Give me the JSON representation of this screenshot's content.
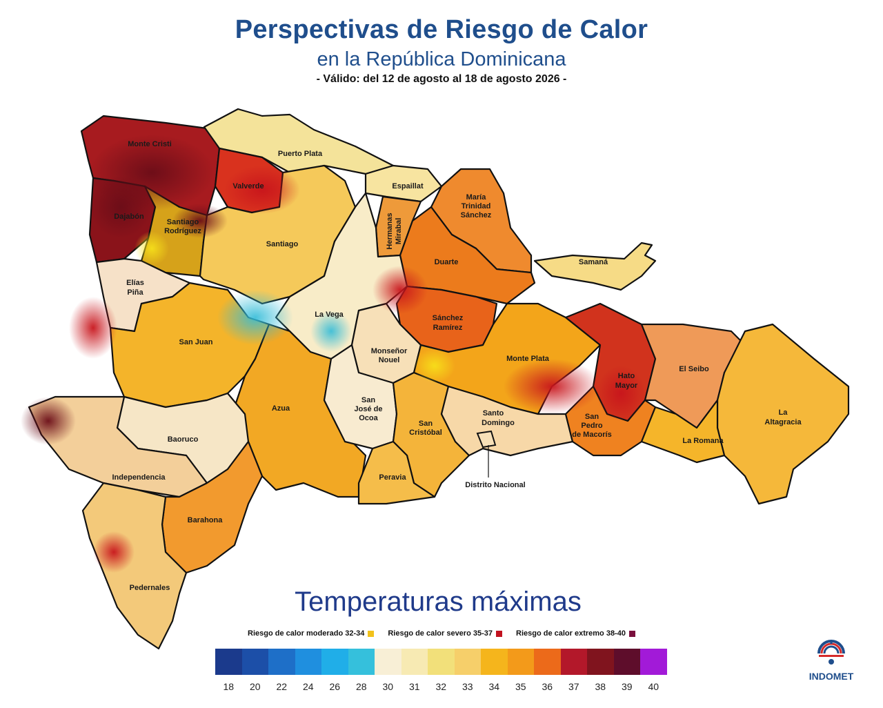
{
  "header": {
    "title_line1": "Perspectivas de Riesgo de Calor",
    "title_line2": "en la República Dominicana",
    "validity": "-  Válido: del 12 de agosto al 18 de agosto 2026  -"
  },
  "section_title": "Temperaturas máximas",
  "risk_legend": [
    {
      "label": "Riesgo de calor moderado 32-34",
      "color": "#f2c21b"
    },
    {
      "label": "Riesgo de calor severo 35-37",
      "color": "#c1121f"
    },
    {
      "label": "Riesgo de calor extremo  38-40",
      "color": "#7a0f3d"
    }
  ],
  "scale": {
    "colors": [
      "#1b3a8c",
      "#1c4fa8",
      "#1e6fc8",
      "#1f8fdf",
      "#20aee8",
      "#35c0dc",
      "#f8efd6",
      "#f7eab3",
      "#f2e07a",
      "#f6cf6a",
      "#f5b51c",
      "#f39a1a",
      "#ec6a1a",
      "#b3182a",
      "#80141e",
      "#5e0d2b",
      "#a21ad8"
    ],
    "ticks": [
      "18",
      "20",
      "22",
      "24",
      "26",
      "28",
      "30",
      "31",
      "32",
      "33",
      "34",
      "35",
      "36",
      "37",
      "38",
      "39",
      "40"
    ]
  },
  "provinces": [
    {
      "name": "Monte Cristi",
      "color": "#a71b1f"
    },
    {
      "name": "Puerto Plata",
      "color": "#f4e39a"
    },
    {
      "name": "Valverde",
      "color": "#d9321e"
    },
    {
      "name": "Dajabón",
      "color": "#8a131a"
    },
    {
      "name": "Santiago Rodríguez",
      "color": "#d6a21a"
    },
    {
      "name": "Santiago",
      "color": "#f5c95a"
    },
    {
      "name": "Espaillat",
      "color": "#f7e4a0"
    },
    {
      "name": "Hermanas Mirabal",
      "color": "#ee9a3a"
    },
    {
      "name": "María Trinidad Sánchez",
      "color": "#ef8a2e"
    },
    {
      "name": "Duarte",
      "color": "#ec7b1c"
    },
    {
      "name": "Samaná",
      "color": "#f6db86"
    },
    {
      "name": "Elías Piña",
      "color": "#f6e1c8"
    },
    {
      "name": "La Vega",
      "color": "#f8ecc8"
    },
    {
      "name": "San Juan",
      "color": "#f4b42a"
    },
    {
      "name": "Sánchez Ramírez",
      "color": "#e8631a"
    },
    {
      "name": "Monseñor Nouel",
      "color": "#f7e0b8"
    },
    {
      "name": "Monte Plata",
      "color": "#f3a51a"
    },
    {
      "name": "Hato Mayor",
      "color": "#d1331d"
    },
    {
      "name": "El Seibo",
      "color": "#ef9a58"
    },
    {
      "name": "La Altagracia",
      "color": "#f5b83a"
    },
    {
      "name": "Azua",
      "color": "#f2a824"
    },
    {
      "name": "San José de Ocoa",
      "color": "#f8ebd0"
    },
    {
      "name": "San Cristóbal",
      "color": "#f4b43a"
    },
    {
      "name": "Santo Domingo",
      "color": "#f7d8a8"
    },
    {
      "name": "San Pedro de Macorís",
      "color": "#ef8220"
    },
    {
      "name": "La Romana",
      "color": "#f5b52a"
    },
    {
      "name": "Baoruco",
      "color": "#f6e6c6"
    },
    {
      "name": "Independencia",
      "color": "#f3cf9a"
    },
    {
      "name": "Peravia",
      "color": "#f5bd4a"
    },
    {
      "name": "Barahona",
      "color": "#f29a2e"
    },
    {
      "name": "Pedernales",
      "color": "#f3c97a"
    }
  ],
  "label_texts": {
    "monte_cristi": "Monte Cristi",
    "puerto_plata": "Puerto Plata",
    "valverde": "Valverde",
    "espaillat": "Espaillat",
    "mts_1": "María",
    "mts_2": "Trinidad",
    "mts_3": "Sánchez",
    "dajabon": "Dajabón",
    "sr_1": "Santiago",
    "sr_2": "Rodríguez",
    "santiago": "Santiago",
    "hm_1": "Hermanas",
    "hm_2": "Mirabal",
    "duarte": "Duarte",
    "samana": "Samaná",
    "ep_1": "Elías",
    "ep_2": "Piña",
    "la_vega": "La Vega",
    "san_juan": "San Juan",
    "srm_1": "Sánchez",
    "srm_2": "Ramírez",
    "mn_1": "Monseñor",
    "mn_2": "Nouel",
    "monte_plata": "Monte Plata",
    "hato_1": "Hato",
    "hato_2": "Mayor",
    "el_seibo": "El Seibo",
    "la_1": "La",
    "la_2": "Altagracia",
    "azua": "Azua",
    "sjo_1": "San",
    "sjo_2": "José de",
    "sjo_3": "Ocoa",
    "sc_1": "San",
    "sc_2": "Cristóbal",
    "sd_1": "Santo",
    "sd_2": "Domingo",
    "spm_1": "San",
    "spm_2": "Pedro",
    "spm_3": "de Macorís",
    "la_romana": "La Romana",
    "baoruco": "Baoruco",
    "independencia": "Independencia",
    "peravia": "Peravia",
    "distrito_nacional": "Distrito Nacional",
    "barahona": "Barahona",
    "pedernales": "Pedernales"
  },
  "logo": {
    "text": "INDOMET"
  }
}
